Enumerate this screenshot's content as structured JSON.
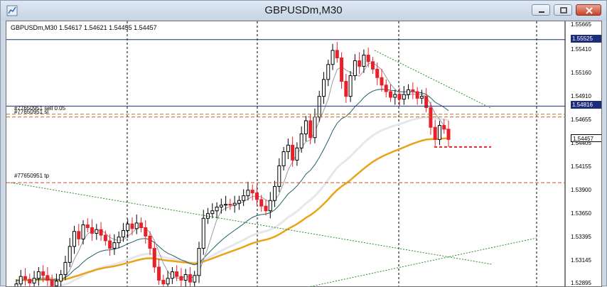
{
  "window": {
    "title": "GBPUSDm,M30"
  },
  "toolbar": {
    "minimize_icon": "minimize-icon",
    "maximize_icon": "maximize-icon",
    "close_icon": "close-icon"
  },
  "chart": {
    "symbol_info": "GBPUSDm,M30  1.54617 1.54621 1.54455 1.54457",
    "orders": [
      {
        "text": "#77650951 sell 0.05"
      },
      {
        "text": "#77650951 sl"
      },
      {
        "text": "#77650951 tp"
      }
    ],
    "price_scale": [
      "1.55665",
      "1.55410",
      "1.55160",
      "1.54910",
      "1.54655",
      "1.54405",
      "1.54155",
      "1.53900",
      "1.53650",
      "1.53395",
      "1.53145",
      "1.52895"
    ],
    "marked_prices": {
      "upper_line": "1.55525",
      "middle_line": "1.54816",
      "current_price": "1.54457"
    },
    "colors": {
      "bull_candle": "#000000",
      "bear_candle": "#e8202a",
      "ma_fast": "#9a9a9a",
      "ma_mid": "#1f5f6a",
      "ma_slow": "#e6e6ef",
      "ma_long": "#e8a317",
      "trendline": "#2a8a2a",
      "horizontal_line": "#1c2e7a",
      "order_line": "#b0742a",
      "tp_line": "#c05030"
    }
  },
  "chart_data": {
    "type": "candlestick",
    "title": "GBPUSDm,M30",
    "ylim": [
      1.5288,
      1.5572
    ],
    "y_ticks": [
      1.55665,
      1.5541,
      1.5516,
      1.5491,
      1.54655,
      1.54405,
      1.54155,
      1.539,
      1.5365,
      1.53395,
      1.53145,
      1.52895
    ],
    "horizontal_lines": [
      1.55525,
      1.54816
    ],
    "order_levels": {
      "sell_open": 1.5473,
      "stop_loss": 1.547,
      "take_profit": 1.54
    },
    "last_close": 1.54457,
    "candles_close": [
      1.5292,
      1.53,
      1.5297,
      1.5293,
      1.5298,
      1.5305,
      1.5301,
      1.5296,
      1.529,
      1.5295,
      1.5302,
      1.5315,
      1.5332,
      1.5348,
      1.534,
      1.5355,
      1.5352,
      1.5346,
      1.535,
      1.5344,
      1.5338,
      1.533,
      1.5336,
      1.5342,
      1.5349,
      1.5356,
      1.5351,
      1.5357,
      1.5352,
      1.5343,
      1.533,
      1.531,
      1.5296,
      1.5292,
      1.5298,
      1.5305,
      1.53,
      1.5296,
      1.5302,
      1.5294,
      1.5301,
      1.533,
      1.5362,
      1.5367,
      1.537,
      1.5374,
      1.5376,
      1.5377,
      1.5376,
      1.5378,
      1.5381,
      1.5386,
      1.5392,
      1.5389,
      1.5382,
      1.5375,
      1.537,
      1.5381,
      1.5396,
      1.5418,
      1.5433,
      1.544,
      1.5424,
      1.5437,
      1.5452,
      1.5466,
      1.5448,
      1.547,
      1.5492,
      1.551,
      1.5526,
      1.5541,
      1.5533,
      1.5508,
      1.5492,
      1.5514,
      1.553,
      1.5524,
      1.5536,
      1.5529,
      1.5521,
      1.5512,
      1.5504,
      1.5497,
      1.5491,
      1.5494,
      1.5489,
      1.5494,
      1.5499,
      1.5497,
      1.549,
      1.5492,
      1.548,
      1.5459,
      1.5446,
      1.5461,
      1.5457,
      1.5446
    ]
  }
}
